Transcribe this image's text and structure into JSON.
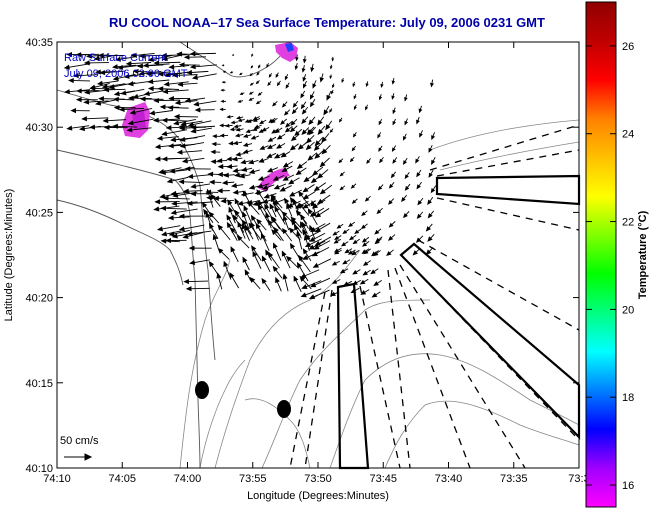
{
  "title": "RU COOL  NOAA–17  Sea Surface Temperature:  July 09, 2006 0231 GMT",
  "annotation_line1": "Raw Surface Current",
  "annotation_line2": "July 09, 2006 02:00 GMT",
  "scale_label": "50 cm/s",
  "xlabel": "Longitude (Degrees:Minutes)",
  "ylabel": "Latitude (Degrees:Minutes)",
  "colorbar_label": "Temperature (°C)",
  "x_ticks": [
    "74:10",
    "74:05",
    "74:00",
    "73:55",
    "73:50",
    "73:45",
    "73:40",
    "73:35",
    "73:3"
  ],
  "y_ticks": [
    "40:35",
    "40:30",
    "40:25",
    "40:20",
    "40:15",
    "40:10"
  ],
  "colorbar_ticks": [
    "26",
    "24",
    "22",
    "20",
    "18",
    "16"
  ],
  "colorbar_colors": [
    "#ff00ff",
    "#a000ff",
    "#0000ff",
    "#0080ff",
    "#00ffff",
    "#00ff80",
    "#00ff00",
    "#80ff00",
    "#ffff00",
    "#ffc000",
    "#ff8000",
    "#ff0000",
    "#c00000",
    "#900000"
  ],
  "colorbar_range": [
    15.5,
    27.0
  ]
}
